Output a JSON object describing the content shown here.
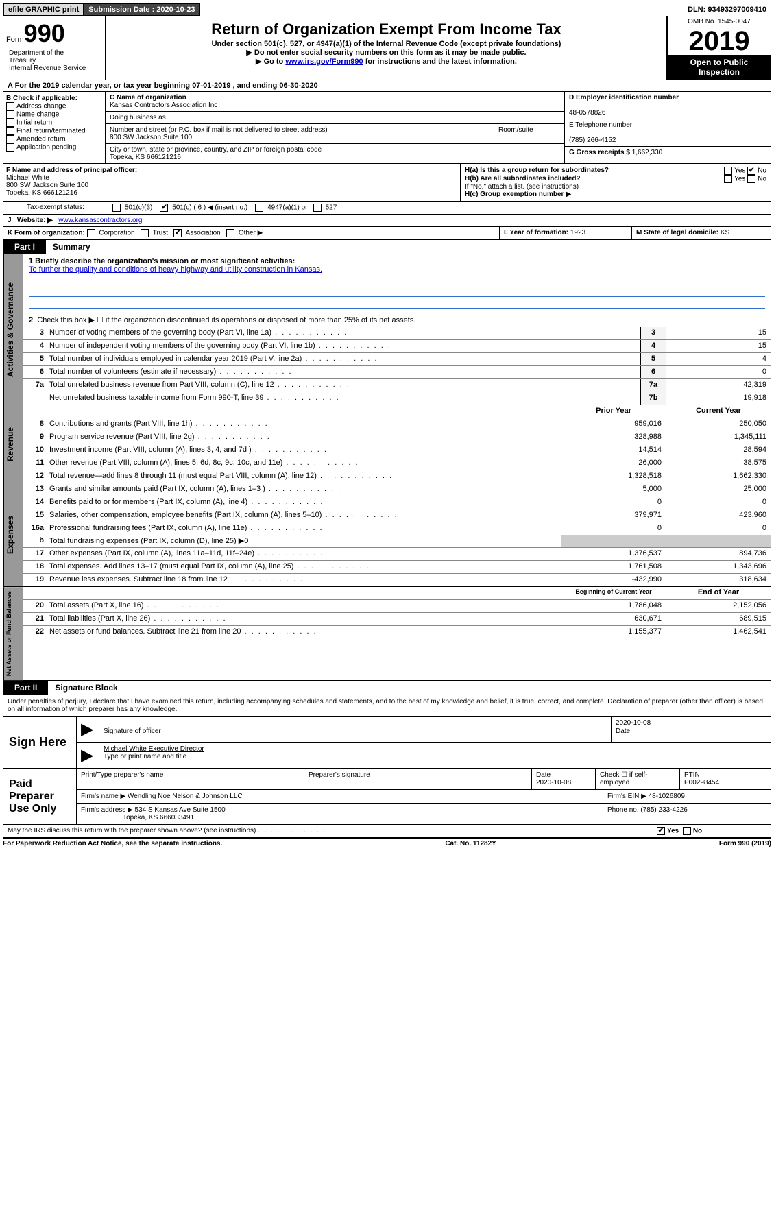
{
  "topbar": {
    "efile": "efile GRAPHIC print",
    "submission_label": "Submission Date : 2020-10-23",
    "dln_label": "DLN: 93493297009410"
  },
  "header": {
    "form_label": "Form",
    "form_num": "990",
    "dept": "Department of the Treasury\nInternal Revenue Service",
    "title": "Return of Organization Exempt From Income Tax",
    "sub1": "Under section 501(c), 527, or 4947(a)(1) of the Internal Revenue Code (except private foundations)",
    "sub2": "▶ Do not enter social security numbers on this form as it may be made public.",
    "sub3_pre": "▶ Go to ",
    "sub3_link": "www.irs.gov/Form990",
    "sub3_post": " for instructions and the latest information.",
    "omb": "OMB No. 1545-0047",
    "year": "2019",
    "open": "Open to Public Inspection"
  },
  "sectionA": "A For the 2019 calendar year, or tax year beginning 07-01-2019    , and ending 06-30-2020",
  "boxB": {
    "label": "B Check if applicable:",
    "items": [
      "Address change",
      "Name change",
      "Initial return",
      "Final return/terminated",
      "Amended return",
      "Application pending"
    ]
  },
  "boxC": {
    "label_name": "C Name of organization",
    "org": "Kansas Contractors Association Inc",
    "dba_label": "Doing business as",
    "addr_label": "Number and street (or P.O. box if mail is not delivered to street address)",
    "room_label": "Room/suite",
    "addr": "800 SW Jackson Suite 100",
    "city_label": "City or town, state or province, country, and ZIP or foreign postal code",
    "city": "Topeka, KS  666121216"
  },
  "boxD": {
    "label": "D Employer identification number",
    "ein": "48-0578826"
  },
  "boxE": {
    "label": "E Telephone number",
    "phone": "(785) 266-4152"
  },
  "boxG": {
    "label": "G Gross receipts $",
    "amount": "1,662,330"
  },
  "boxF": {
    "label": "F  Name and address of principal officer:",
    "name": "Michael White",
    "addr1": "800 SW Jackson Suite 100",
    "addr2": "Topeka, KS  666121216"
  },
  "boxH": {
    "a": "H(a)  Is this a group return for subordinates?",
    "b": "H(b)  Are all subordinates included?",
    "b_note": "If \"No,\" attach a list. (see instructions)",
    "c": "H(c)  Group exemption number ▶",
    "yes": "Yes",
    "no": "No"
  },
  "boxI": {
    "label": "Tax-exempt status:",
    "o1": "501(c)(3)",
    "o2": "501(c) ( 6 ) ◀ (insert no.)",
    "o3": "4947(a)(1) or",
    "o4": "527"
  },
  "boxJ": {
    "label": "J",
    "text": "Website: ▶",
    "url": "www.kansascontractors.org"
  },
  "boxK": {
    "label": "K Form of organization:",
    "o1": "Corporation",
    "o2": "Trust",
    "o3": "Association",
    "o4": "Other ▶"
  },
  "boxL": {
    "label": "L Year of formation:",
    "val": "1923"
  },
  "boxM": {
    "label": "M State of legal domicile:",
    "val": "KS"
  },
  "part1": {
    "tab": "Part I",
    "title": "Summary"
  },
  "summary": {
    "q1_label": "1  Briefly describe the organization's mission or most significant activities:",
    "q1_text": "To further the quality and conditions of heavy highway and utility construction in Kansas.",
    "q2": "Check this box ▶ ☐  if the organization discontinued its operations or disposed of more than 25% of its net assets.",
    "rows_top": [
      {
        "n": "3",
        "d": "Number of voting members of the governing body (Part VI, line 1a)",
        "box": "3",
        "v": "15"
      },
      {
        "n": "4",
        "d": "Number of independent voting members of the governing body (Part VI, line 1b)",
        "box": "4",
        "v": "15"
      },
      {
        "n": "5",
        "d": "Total number of individuals employed in calendar year 2019 (Part V, line 2a)",
        "box": "5",
        "v": "4"
      },
      {
        "n": "6",
        "d": "Total number of volunteers (estimate if necessary)",
        "box": "6",
        "v": "0"
      },
      {
        "n": "7a",
        "d": "Total unrelated business revenue from Part VIII, column (C), line 12",
        "box": "7a",
        "v": "42,319"
      },
      {
        "n": "",
        "d": "Net unrelated business taxable income from Form 990-T, line 39",
        "box": "7b",
        "v": "19,918"
      }
    ],
    "col_prior": "Prior Year",
    "col_current": "Current Year",
    "revenue": [
      {
        "n": "8",
        "d": "Contributions and grants (Part VIII, line 1h)",
        "p": "959,016",
        "c": "250,050"
      },
      {
        "n": "9",
        "d": "Program service revenue (Part VIII, line 2g)",
        "p": "328,988",
        "c": "1,345,111"
      },
      {
        "n": "10",
        "d": "Investment income (Part VIII, column (A), lines 3, 4, and 7d )",
        "p": "14,514",
        "c": "28,594"
      },
      {
        "n": "11",
        "d": "Other revenue (Part VIII, column (A), lines 5, 6d, 8c, 9c, 10c, and 11e)",
        "p": "26,000",
        "c": "38,575"
      },
      {
        "n": "12",
        "d": "Total revenue—add lines 8 through 11 (must equal Part VIII, column (A), line 12)",
        "p": "1,328,518",
        "c": "1,662,330"
      }
    ],
    "expenses": [
      {
        "n": "13",
        "d": "Grants and similar amounts paid (Part IX, column (A), lines 1–3 )",
        "p": "5,000",
        "c": "25,000"
      },
      {
        "n": "14",
        "d": "Benefits paid to or for members (Part IX, column (A), line 4)",
        "p": "0",
        "c": "0"
      },
      {
        "n": "15",
        "d": "Salaries, other compensation, employee benefits (Part IX, column (A), lines 5–10)",
        "p": "379,971",
        "c": "423,960"
      },
      {
        "n": "16a",
        "d": "Professional fundraising fees (Part IX, column (A), line 11e)",
        "p": "0",
        "c": "0"
      }
    ],
    "exp_b": {
      "n": "b",
      "d": "Total fundraising expenses (Part IX, column (D), line 25) ▶",
      "v": "0"
    },
    "expenses2": [
      {
        "n": "17",
        "d": "Other expenses (Part IX, column (A), lines 11a–11d, 11f–24e)",
        "p": "1,376,537",
        "c": "894,736"
      },
      {
        "n": "18",
        "d": "Total expenses. Add lines 13–17 (must equal Part IX, column (A), line 25)",
        "p": "1,761,508",
        "c": "1,343,696"
      },
      {
        "n": "19",
        "d": "Revenue less expenses. Subtract line 18 from line 12",
        "p": "-432,990",
        "c": "318,634"
      }
    ],
    "col_beg": "Beginning of Current Year",
    "col_end": "End of Year",
    "net": [
      {
        "n": "20",
        "d": "Total assets (Part X, line 16)",
        "p": "1,786,048",
        "c": "2,152,056"
      },
      {
        "n": "21",
        "d": "Total liabilities (Part X, line 26)",
        "p": "630,671",
        "c": "689,515"
      },
      {
        "n": "22",
        "d": "Net assets or fund balances. Subtract line 21 from line 20",
        "p": "1,155,377",
        "c": "1,462,541"
      }
    ]
  },
  "part2": {
    "tab": "Part II",
    "title": "Signature Block"
  },
  "perjury": "Under penalties of perjury, I declare that I have examined this return, including accompanying schedules and statements, and to the best of my knowledge and belief, it is true, correct, and complete. Declaration of preparer (other than officer) is based on all information of which preparer has any knowledge.",
  "sign": {
    "here": "Sign Here",
    "sig_label": "Signature of officer",
    "date": "2020-10-08",
    "date_label": "Date",
    "name": "Michael White  Executive Director",
    "name_label": "Type or print name and title"
  },
  "paid": {
    "title": "Paid Preparer Use Only",
    "h1": "Print/Type preparer's name",
    "h2": "Preparer's signature",
    "h3": "Date",
    "h3v": "2020-10-08",
    "h4": "Check ☐ if self-employed",
    "h5": "PTIN",
    "h5v": "P00298454",
    "fname_l": "Firm's name     ▶",
    "fname": "Wendling Noe Nelson & Johnson LLC",
    "fein_l": "Firm's EIN ▶",
    "fein": "48-1026809",
    "faddr_l": "Firm's address ▶",
    "faddr1": "534 S Kansas Ave Suite 1500",
    "faddr2": "Topeka, KS  666033491",
    "fphone_l": "Phone no.",
    "fphone": "(785) 233-4226"
  },
  "discuss": "May the IRS discuss this return with the preparer shown above? (see instructions)",
  "footer": {
    "l": "For Paperwork Reduction Act Notice, see the separate instructions.",
    "m": "Cat. No. 11282Y",
    "r": "Form 990 (2019)"
  }
}
